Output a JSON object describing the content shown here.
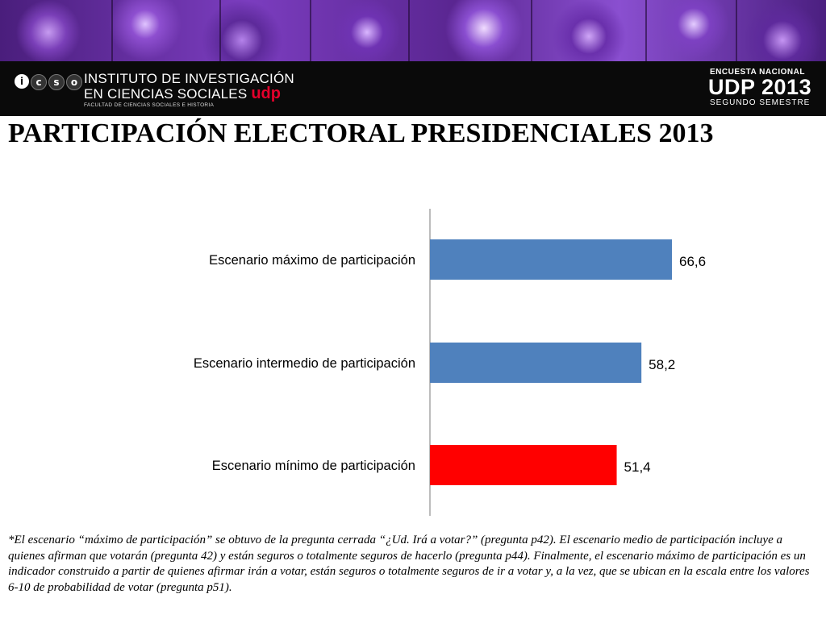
{
  "header": {
    "logo_letters": [
      "i",
      "c",
      "s",
      "o"
    ],
    "institute_line1": "INSTITUTO DE INVESTIGACIÓN",
    "institute_line2": "EN CIENCIAS SOCIALES",
    "institute_brand": "udp",
    "institute_subtitle": "FACULTAD DE CIENCIAS SOCIALES E HISTORIA",
    "survey_label": "ENCUESTA NACIONAL",
    "survey_title": "UDP 2013",
    "survey_period": "SEGUNDO SEMESTRE"
  },
  "title": "PARTICIPACIÓN ELECTORAL PRESIDENCIALES 2013",
  "chart_data": {
    "type": "bar",
    "orientation": "horizontal",
    "categories": [
      "Escenario máximo de participación",
      "Escenario intermedio de participación",
      "Escenario mínimo de participación"
    ],
    "values": [
      66.6,
      58.2,
      51.4
    ],
    "value_labels": [
      "66,6",
      "58,2",
      "51,4"
    ],
    "colors": [
      "#4f81bd",
      "#4f81bd",
      "#ff0000"
    ],
    "xlim": [
      0,
      100
    ],
    "grid": false,
    "legend": "none"
  },
  "footnote": "*El escenario “máximo de participación” se obtuvo de la pregunta cerrada “¿Ud. Irá a votar?” (pregunta p42). El escenario medio de participación incluye a quienes afirman que votarán (pregunta 42) y están seguros o totalmente seguros de hacerlo (pregunta p44). Finalmente, el escenario máximo de participación es un indicador construido a partir de quienes afirmar irán a votar, están seguros o totalmente seguros de ir a votar y, a la vez, que se ubican en la escala entre los valores 6-10 de probabilidad de votar (pregunta p51)."
}
